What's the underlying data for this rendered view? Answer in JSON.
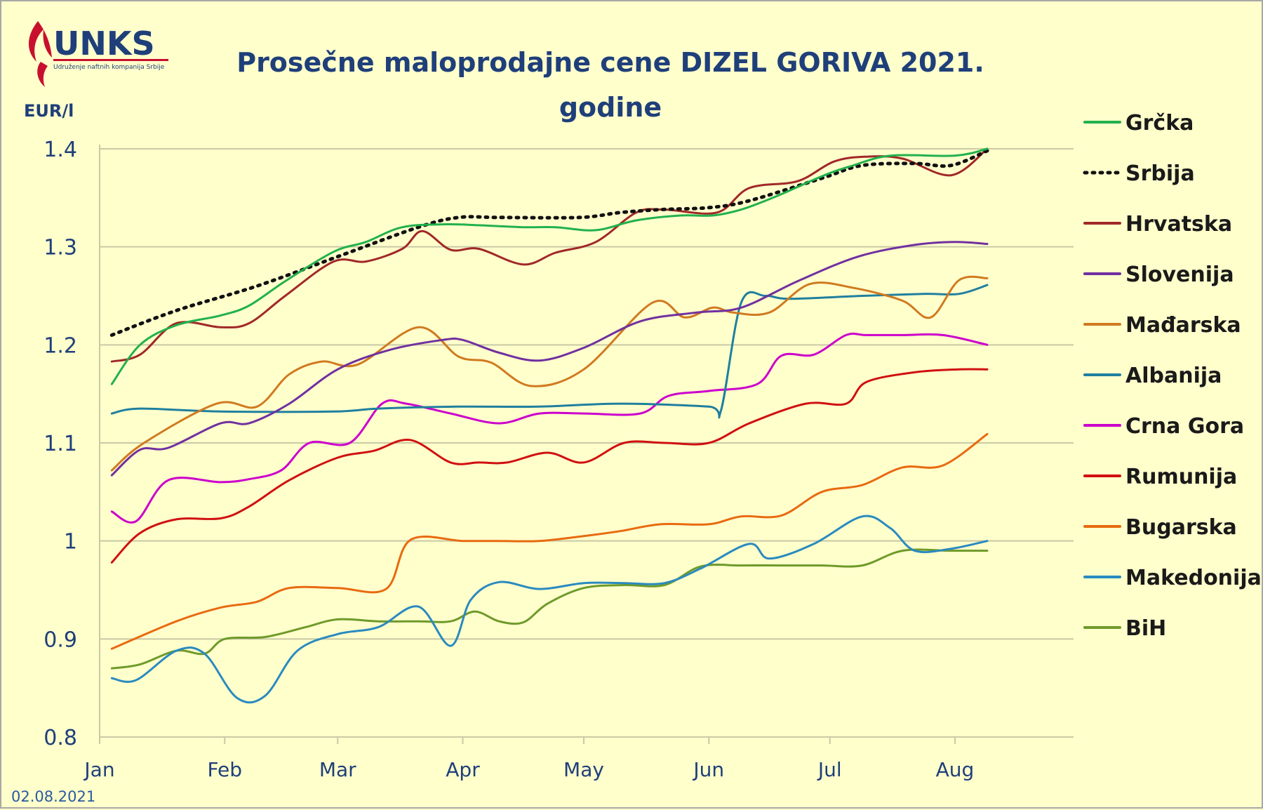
{
  "logo": {
    "name": "UNKS",
    "tagline": "Udruženje naftnih kompanija Srbije"
  },
  "date_stamp": "02.08.2021",
  "chart_data": {
    "type": "line",
    "title_line1": "Prosečne maloprodajne cene DIZEL GORIVA 2021.",
    "title_line2": "godine",
    "ylabel": "EUR/l",
    "xlabel": "",
    "ylim": [
      0.8,
      1.4
    ],
    "yticks": [
      "1.4",
      "1.3",
      "1.2",
      "1.1",
      "1",
      "0.9",
      "0.8"
    ],
    "ytick_values": [
      1.4,
      1.3,
      1.2,
      1.1,
      1.0,
      0.9,
      0.8
    ],
    "xticks": [
      "Jan",
      "Feb",
      "Mar",
      "Apr",
      "May",
      "Jun",
      "Jul",
      "Aug"
    ],
    "xtick_days": [
      1,
      32,
      60,
      91,
      121,
      152,
      182,
      213
    ],
    "xlim_days": [
      1,
      243
    ],
    "grid": true,
    "legend_position": "right",
    "series": [
      {
        "name": "Grčka",
        "color": "#22b14c",
        "dashed": false,
        "days": [
          4,
          11,
          20,
          31,
          38,
          47,
          59,
          67,
          76,
          87,
          95,
          106,
          114,
          124,
          134,
          145,
          153,
          160,
          169,
          180,
          187,
          197,
          213,
          221
        ],
        "values": [
          1.16,
          1.2,
          1.22,
          1.23,
          1.24,
          1.265,
          1.295,
          1.305,
          1.32,
          1.323,
          1.322,
          1.32,
          1.32,
          1.317,
          1.327,
          1.332,
          1.332,
          1.338,
          1.352,
          1.372,
          1.382,
          1.393,
          1.393,
          1.4
        ]
      },
      {
        "name": "Srbija",
        "color": "#111111",
        "dashed": true,
        "days": [
          4,
          20,
          40,
          60,
          80,
          90,
          100,
          120,
          130,
          140,
          152,
          162,
          180,
          190,
          203,
          212,
          221
        ],
        "values": [
          1.21,
          1.235,
          1.26,
          1.29,
          1.32,
          1.33,
          1.33,
          1.33,
          1.335,
          1.338,
          1.34,
          1.347,
          1.37,
          1.383,
          1.385,
          1.383,
          1.398
        ]
      },
      {
        "name": "Hrvatska",
        "color": "#a02828",
        "dashed": false,
        "days": [
          4,
          11,
          20,
          31,
          38,
          47,
          59,
          67,
          76,
          81,
          88,
          95,
          106,
          114,
          124,
          134,
          141,
          154,
          162,
          174,
          183,
          191,
          200,
          212,
          221
        ],
        "values": [
          1.183,
          1.19,
          1.222,
          1.218,
          1.222,
          1.25,
          1.285,
          1.285,
          1.298,
          1.316,
          1.297,
          1.298,
          1.282,
          1.294,
          1.305,
          1.335,
          1.338,
          1.335,
          1.36,
          1.367,
          1.387,
          1.392,
          1.39,
          1.373,
          1.4
        ]
      },
      {
        "name": "Slovenija",
        "color": "#7030a0",
        "dashed": false,
        "days": [
          4,
          11,
          18,
          31,
          38,
          48,
          60,
          73,
          86,
          91,
          100,
          110,
          121,
          135,
          149,
          160,
          174,
          189,
          203,
          213,
          221
        ],
        "values": [
          1.067,
          1.093,
          1.095,
          1.12,
          1.12,
          1.14,
          1.175,
          1.195,
          1.205,
          1.205,
          1.192,
          1.184,
          1.197,
          1.224,
          1.233,
          1.238,
          1.265,
          1.29,
          1.302,
          1.305,
          1.303
        ]
      },
      {
        "name": "Mađarska",
        "color": "#d07a20",
        "dashed": false,
        "days": [
          4,
          12,
          30,
          40,
          48,
          56,
          65,
          80,
          90,
          98,
          108,
          121,
          138,
          146,
          153,
          158,
          167,
          177,
          188,
          200,
          207,
          214,
          221
        ],
        "values": [
          1.072,
          1.1,
          1.14,
          1.137,
          1.17,
          1.183,
          1.18,
          1.218,
          1.188,
          1.182,
          1.158,
          1.175,
          1.243,
          1.228,
          1.238,
          1.233,
          1.233,
          1.262,
          1.258,
          1.245,
          1.228,
          1.266,
          1.268
        ]
      },
      {
        "name": "Albanija",
        "color": "#1f7f9f",
        "dashed": false,
        "days": [
          4,
          11,
          31,
          59,
          70,
          90,
          110,
          130,
          152,
          155,
          160,
          166,
          172,
          190,
          205,
          214,
          221
        ],
        "values": [
          1.13,
          1.135,
          1.132,
          1.132,
          1.135,
          1.137,
          1.137,
          1.14,
          1.137,
          1.133,
          1.243,
          1.25,
          1.247,
          1.25,
          1.252,
          1.252,
          1.261
        ]
      },
      {
        "name": "Crna Gora",
        "color": "#cc00cc",
        "dashed": false,
        "days": [
          4,
          10,
          18,
          31,
          38,
          46,
          53,
          63,
          71,
          77,
          88,
          100,
          110,
          121,
          135,
          142,
          152,
          164,
          170,
          178,
          186,
          191,
          200,
          210,
          221
        ],
        "values": [
          1.03,
          1.02,
          1.062,
          1.06,
          1.063,
          1.072,
          1.1,
          1.1,
          1.14,
          1.14,
          1.13,
          1.12,
          1.13,
          1.13,
          1.13,
          1.148,
          1.153,
          1.16,
          1.189,
          1.19,
          1.21,
          1.21,
          1.21,
          1.21,
          1.2
        ]
      },
      {
        "name": "Rumunija",
        "color": "#d01010",
        "dashed": false,
        "days": [
          4,
          11,
          20,
          31,
          38,
          48,
          60,
          69,
          78,
          88,
          95,
          102,
          112,
          121,
          131,
          141,
          152,
          162,
          176,
          186,
          191,
          203,
          214,
          221
        ],
        "values": [
          0.978,
          1.008,
          1.022,
          1.023,
          1.035,
          1.062,
          1.085,
          1.092,
          1.103,
          1.08,
          1.08,
          1.08,
          1.09,
          1.08,
          1.1,
          1.1,
          1.1,
          1.12,
          1.14,
          1.14,
          1.162,
          1.172,
          1.175,
          1.175
        ]
      },
      {
        "name": "Bugarska",
        "color": "#e86a10",
        "dashed": false,
        "days": [
          4,
          20,
          31,
          40,
          48,
          60,
          72,
          78,
          91,
          100,
          110,
          121,
          130,
          140,
          152,
          160,
          170,
          180,
          190,
          200,
          210,
          221
        ],
        "values": [
          0.89,
          0.918,
          0.932,
          0.938,
          0.952,
          0.952,
          0.951,
          1.001,
          1.0,
          1.0,
          1.0,
          1.005,
          1.01,
          1.017,
          1.017,
          1.025,
          1.026,
          1.05,
          1.057,
          1.075,
          1.077,
          1.109
        ]
      },
      {
        "name": "Makedonija",
        "color": "#2a8ac0",
        "dashed": false,
        "days": [
          4,
          10,
          20,
          27,
          35,
          42,
          50,
          60,
          70,
          80,
          88,
          93,
          100,
          110,
          121,
          131,
          141,
          150,
          162,
          167,
          178,
          190,
          197,
          203,
          212,
          221
        ],
        "values": [
          0.86,
          0.858,
          0.888,
          0.885,
          0.84,
          0.842,
          0.888,
          0.905,
          0.912,
          0.933,
          0.893,
          0.94,
          0.958,
          0.951,
          0.957,
          0.957,
          0.957,
          0.972,
          0.997,
          0.982,
          0.997,
          1.025,
          1.013,
          0.99,
          0.992,
          1.0
        ]
      },
      {
        "name": "BiH",
        "color": "#6f9a2a",
        "dashed": false,
        "days": [
          4,
          11,
          20,
          27,
          32,
          42,
          52,
          60,
          70,
          80,
          88,
          94,
          100,
          106,
          112,
          121,
          131,
          141,
          150,
          160,
          170,
          180,
          190,
          200,
          212,
          221
        ],
        "values": [
          0.87,
          0.874,
          0.888,
          0.885,
          0.9,
          0.902,
          0.912,
          0.92,
          0.918,
          0.918,
          0.918,
          0.928,
          0.918,
          0.917,
          0.936,
          0.952,
          0.955,
          0.955,
          0.974,
          0.975,
          0.975,
          0.975,
          0.975,
          0.99,
          0.99,
          0.99
        ]
      }
    ]
  }
}
